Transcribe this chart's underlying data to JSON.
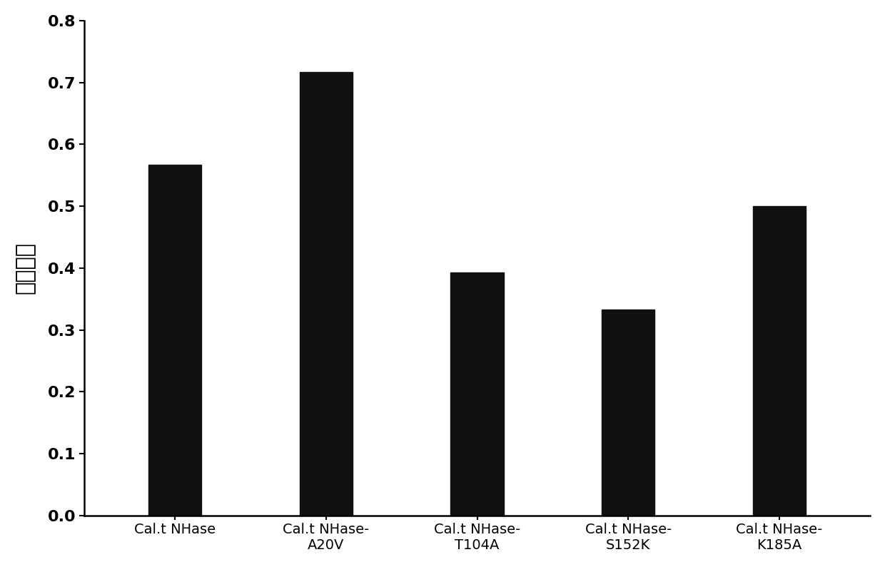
{
  "categories": [
    "Cal.t NHase",
    "Cal.t NHase-\nA20V",
    "Cal.t NHase-\nT104A",
    "Cal.t NHase-\nS152K",
    "Cal.t NHase-\nK185A"
  ],
  "values": [
    0.567,
    0.717,
    0.393,
    0.333,
    0.5
  ],
  "bar_color": "#111111",
  "ylabel": "相对醂活",
  "ylim": [
    0,
    0.8
  ],
  "yticks": [
    0,
    0.1,
    0.2,
    0.3,
    0.4,
    0.5,
    0.6,
    0.7,
    0.8
  ],
  "background_color": "#ffffff",
  "bar_width": 0.35,
  "tick_fontsize": 16,
  "label_fontsize": 14,
  "ylabel_fontsize": 22
}
